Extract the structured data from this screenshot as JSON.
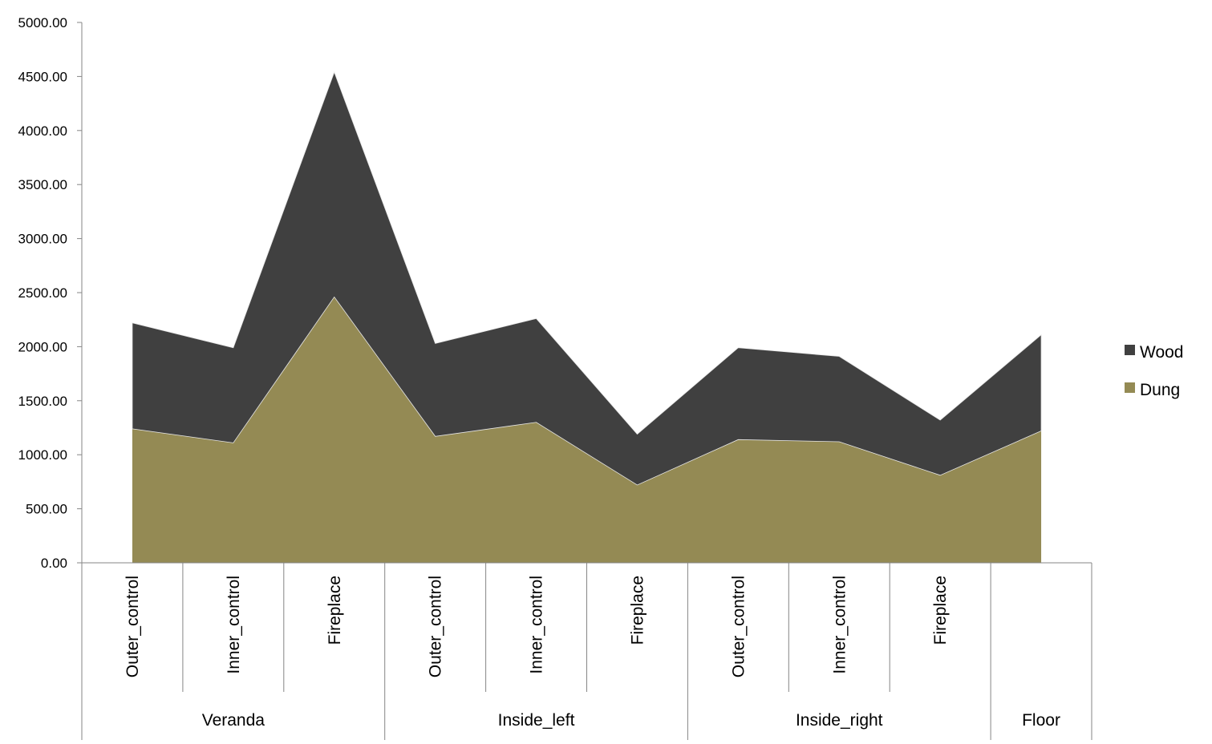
{
  "chart_data": {
    "type": "area",
    "stacked": true,
    "title": "",
    "xlabel": "",
    "ylabel": "",
    "ylim": [
      0,
      5000
    ],
    "y_ticks": [
      "0.00",
      "500.00",
      "1000.00",
      "1500.00",
      "2000.00",
      "2500.00",
      "3000.00",
      "3500.00",
      "4000.00",
      "4500.00",
      "5000.00"
    ],
    "grid": false,
    "legend_position": "right",
    "categories": [
      {
        "label": "Outer_control",
        "group": "Veranda"
      },
      {
        "label": "Inner_control",
        "group": "Veranda"
      },
      {
        "label": "Fireplace",
        "group": "Veranda"
      },
      {
        "label": "Outer_control",
        "group": "Inside_left"
      },
      {
        "label": "Inner_control",
        "group": "Inside_left"
      },
      {
        "label": "Fireplace",
        "group": "Inside_left"
      },
      {
        "label": "Outer_control",
        "group": "Inside_right"
      },
      {
        "label": "Inner_control",
        "group": "Inside_right"
      },
      {
        "label": "Fireplace",
        "group": "Inside_right"
      },
      {
        "label": "",
        "group": "Floor"
      }
    ],
    "groups": [
      {
        "name": "Veranda",
        "count": 3
      },
      {
        "name": "Inside_left",
        "count": 3
      },
      {
        "name": "Inside_right",
        "count": 3
      },
      {
        "name": "Floor",
        "count": 1
      }
    ],
    "series": [
      {
        "name": "Dung",
        "color": "#948a54",
        "values": [
          1240,
          1110,
          2460,
          1170,
          1300,
          720,
          1140,
          1120,
          810,
          1220
        ]
      },
      {
        "name": "Wood",
        "color": "#404040",
        "values": [
          980,
          880,
          2080,
          860,
          960,
          470,
          850,
          790,
          510,
          890
        ]
      }
    ],
    "legend": [
      {
        "name": "Wood",
        "color": "#404040"
      },
      {
        "name": "Dung",
        "color": "#948a54"
      }
    ]
  }
}
